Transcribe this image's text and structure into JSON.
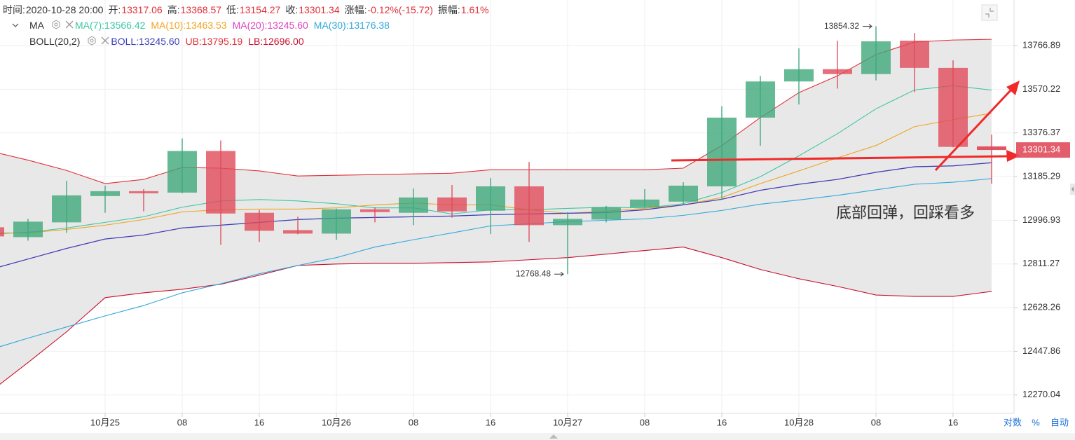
{
  "header": {
    "time_label": "时间:",
    "time": "2020-10-28 20:00",
    "open_label": "开:",
    "high_label": "高:",
    "low_label": "低:",
    "close_label": "收:",
    "change_label": "涨幅:",
    "change": "-0.12%(-15.72)",
    "amplitude_label": "振幅:",
    "amplitude": "1.61%"
  },
  "chart_data": {
    "type": "candlestick",
    "categories": [
      null,
      null,
      null,
      "10月25",
      null,
      "08",
      null,
      "16",
      null,
      "10月26",
      null,
      "08",
      null,
      "16",
      null,
      "10月27",
      null,
      "08",
      null,
      "16",
      null,
      "10月28",
      null,
      "08",
      null,
      "16",
      null
    ],
    "open": [
      12967,
      12925,
      12988,
      13101,
      13122,
      13116,
      13297,
      13029,
      12955,
      12940,
      13044,
      13029,
      13095,
      13038,
      13143,
      12976,
      13000,
      13053,
      13077,
      13143,
      13444,
      13605,
      13660,
      13638,
      13789,
      13666,
      13317.06
    ],
    "high": [
      12980,
      13003,
      13167,
      13146,
      13131,
      13352,
      13343,
      13041,
      13012,
      13047,
      13053,
      13134,
      13149,
      13179,
      13249,
      13032,
      13059,
      13131,
      13161,
      13495,
      13630,
      13754,
      13789,
      13854.32,
      13824,
      13700,
      13368.57
    ],
    "low": [
      12915,
      12910,
      12943,
      13029,
      13035,
      13113,
      12892,
      12905,
      12937,
      12913,
      12988,
      12976,
      13008,
      12938,
      12905,
      12768.48,
      12988,
      13050,
      13065,
      13086,
      13320,
      13502,
      13573,
      13610,
      13557,
      13313,
      13154.27
    ],
    "close": [
      12928,
      12991,
      13104,
      13122,
      13113,
      13297,
      13026,
      12952,
      12940,
      13044,
      13032,
      13095,
      13035,
      13143,
      12976,
      13003,
      13053,
      13086,
      13146,
      13444,
      13605,
      13660,
      13638,
      13786,
      13666,
      13315,
      13301.34
    ],
    "up_color": "#3ea77b",
    "down_color": "#e04b5a",
    "ylim": [
      12196,
      13975
    ],
    "log_scale": true,
    "yticks": [
      12270.04,
      12447.86,
      12628.26,
      12811.27,
      12996.93,
      13185.29,
      13376.37,
      13570.22,
      13766.89
    ],
    "grid": true,
    "ma_label": "MA",
    "ma_series": [
      {
        "name": "MA(7):13566.42",
        "color": "#3cc6a4",
        "values": [
          12937,
          12946,
          12964,
          12988,
          13012,
          13053,
          13080,
          13086,
          13080,
          13068,
          13050,
          13050,
          13024,
          13042,
          13042,
          13048,
          13053,
          13050,
          13068,
          13116,
          13185,
          13276,
          13373,
          13483,
          13567,
          13586,
          13566.42
        ]
      },
      {
        "name": "MA(10):13463.53",
        "color": "#f0a420",
        "values": [
          12943,
          12943,
          12958,
          12976,
          13000,
          13033,
          13042,
          13045,
          13045,
          13050,
          13063,
          13071,
          13063,
          13063,
          13042,
          13027,
          13036,
          13048,
          13063,
          13095,
          13155,
          13210,
          13267,
          13321,
          13404,
          13435,
          13463.53
        ]
      },
      {
        "name": "MA(20):13245.60",
        "color": "#e040c0",
        "values": [
          12787,
          12832,
          12877,
          12917,
          12934,
          12964,
          12976,
          12988,
          13000,
          13006,
          13009,
          13012,
          13015,
          13021,
          13024,
          13027,
          13030,
          13042,
          13063,
          13087,
          13126,
          13152,
          13173,
          13204,
          13228,
          13232,
          13245.6
        ]
      },
      {
        "name": "MA(30):13176.38",
        "color": "#2fa8dc",
        "values": [
          12454,
          12502,
          12548,
          12594,
          12637,
          12690,
          12728,
          12770,
          12805,
          12838,
          12883,
          12914,
          12943,
          12973,
          12982,
          12991,
          12997,
          13003,
          13018,
          13039,
          13066,
          13084,
          13104,
          13128,
          13152,
          13161,
          13176.38
        ]
      }
    ],
    "boll_label": "BOLL(20,2)",
    "boll_series": [
      {
        "name": "BOLL:13245.60",
        "color": "#3a42b8",
        "values": [
          12787,
          12832,
          12877,
          12917,
          12934,
          12964,
          12976,
          12988,
          13000,
          13006,
          13009,
          13012,
          13015,
          13021,
          13024,
          13027,
          13030,
          13042,
          13063,
          13087,
          13126,
          13152,
          13173,
          13204,
          13228,
          13232,
          13245.6
        ]
      },
      {
        "name": "UB:13795.19",
        "color": "#e0303a",
        "values": [
          13297,
          13257,
          13212,
          13155,
          13173,
          13225,
          13222,
          13210,
          13188,
          13191,
          13194,
          13197,
          13200,
          13215,
          13215,
          13215,
          13215,
          13215,
          13222,
          13321,
          13444,
          13555,
          13630,
          13726,
          13783,
          13792,
          13795.19
        ]
      },
      {
        "name": "LB:12696.00",
        "color": "#c8102e",
        "values": [
          12281,
          12402,
          12528,
          12670,
          12690,
          12705,
          12726,
          12764,
          12805,
          12811,
          12814,
          12814,
          12817,
          12820,
          12829,
          12838,
          12853,
          12868,
          12883,
          12838,
          12788,
          12749,
          12717,
          12681,
          12675,
          12675,
          12696.0
        ]
      }
    ],
    "band_color": "#e8e8e8",
    "annotation": {
      "text": "底部回弹，回踩看多",
      "color": "#1fae1f"
    },
    "controls": [
      "对数",
      "%",
      "自动"
    ]
  }
}
